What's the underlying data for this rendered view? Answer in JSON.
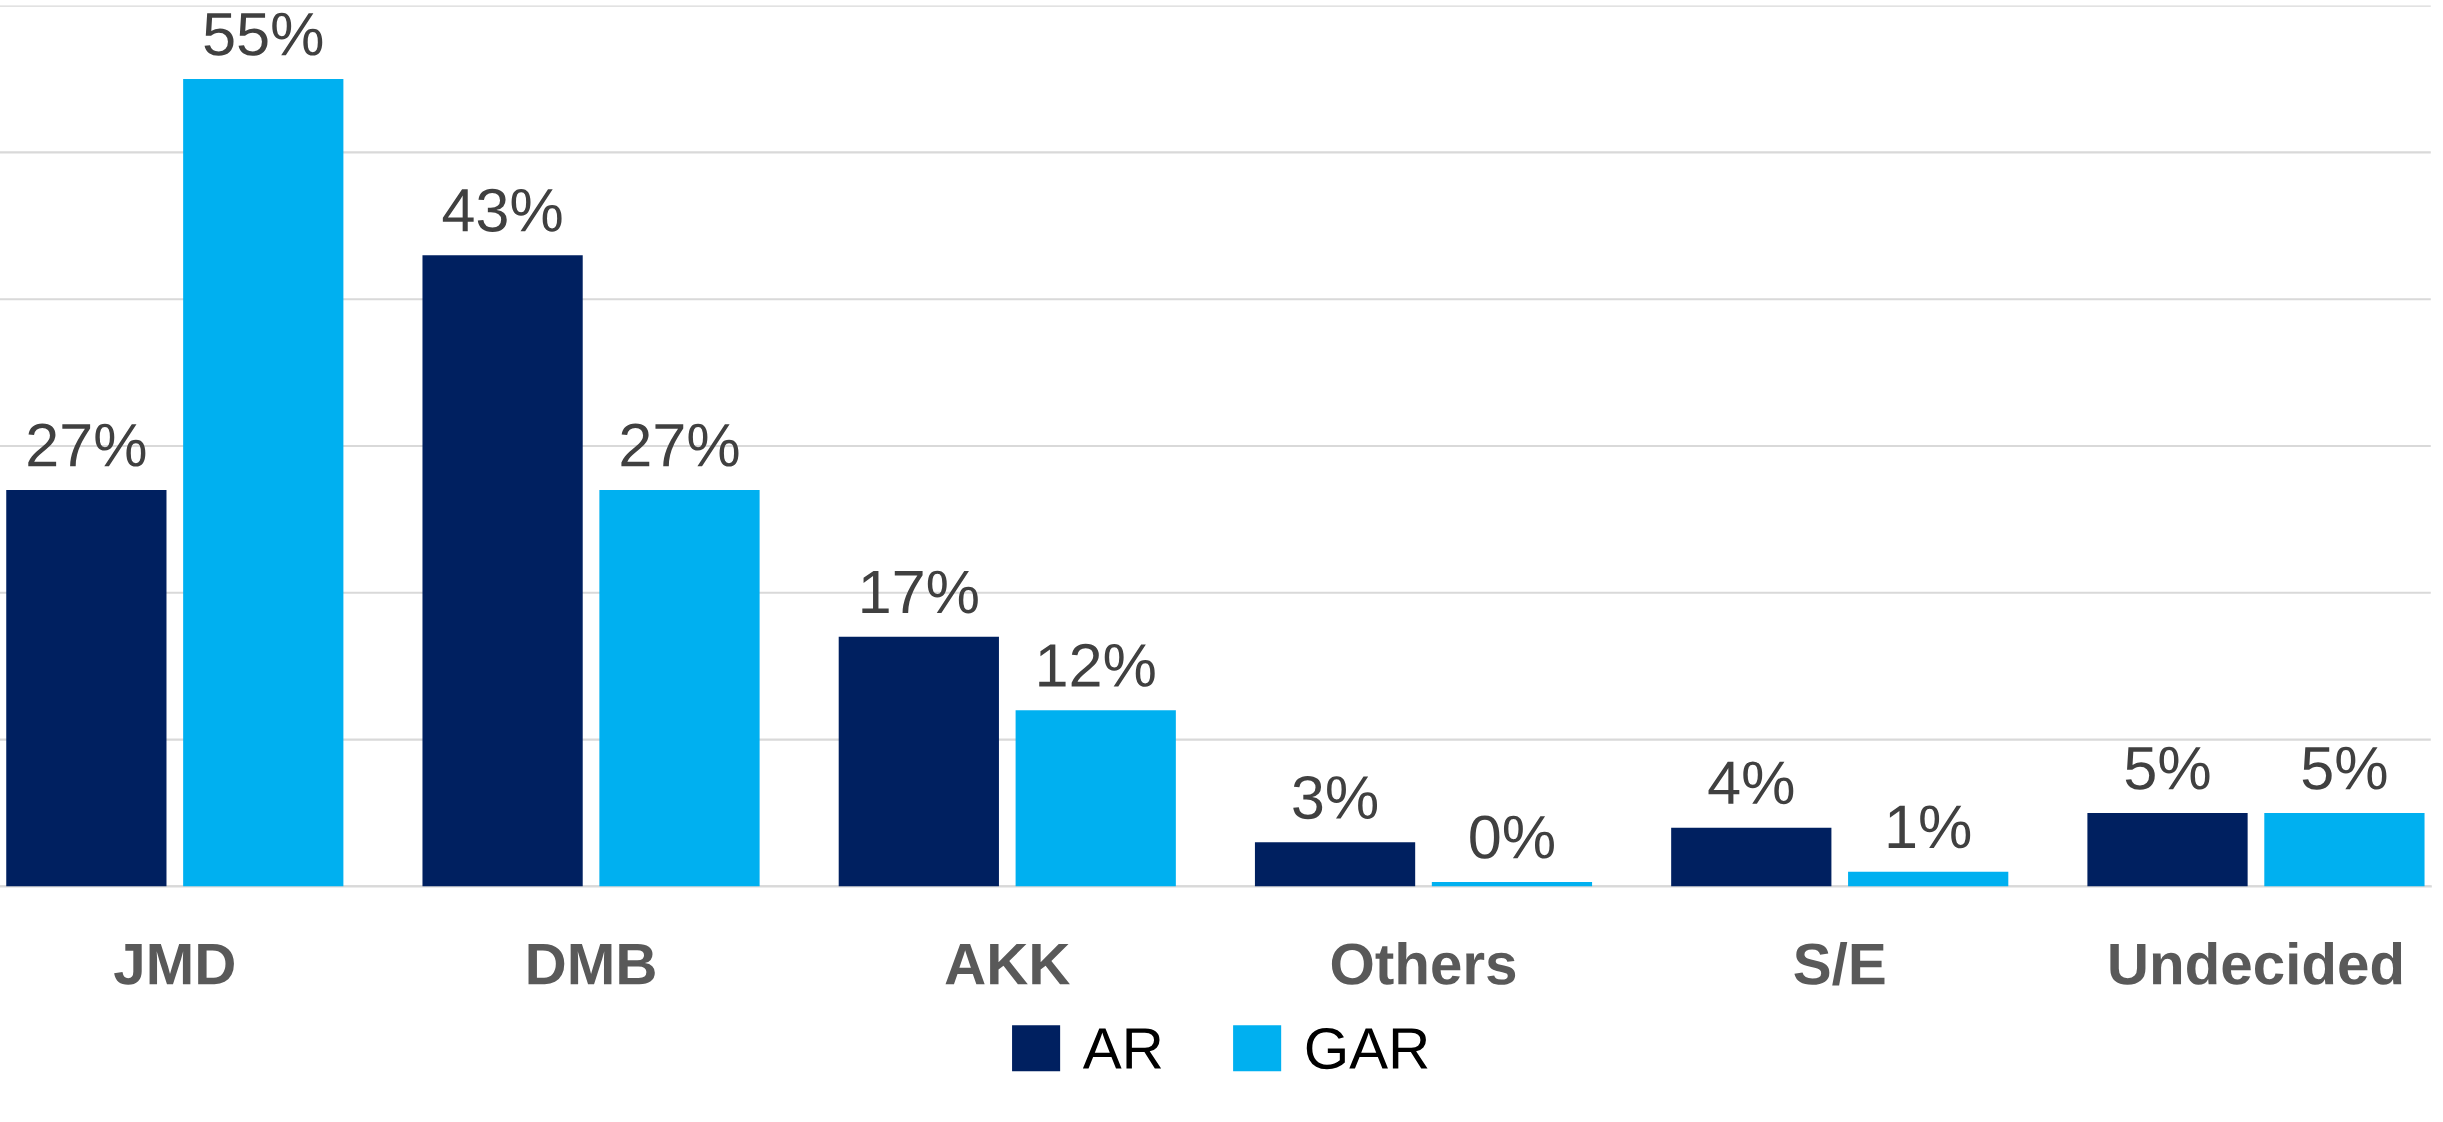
{
  "chart_data": {
    "type": "bar",
    "categories": [
      "JMD",
      "DMB",
      "AKK",
      "Others",
      "S/E",
      "Undecided"
    ],
    "series": [
      {
        "name": "AR",
        "color": "#002060",
        "values": [
          27,
          43,
          17,
          3,
          4,
          5
        ],
        "value_labels": [
          "27%",
          "43%",
          "17%",
          "3%",
          "4%",
          "5%"
        ]
      },
      {
        "name": "GAR",
        "color": "#00b0f0",
        "values": [
          55,
          27,
          12,
          0.3,
          1,
          5
        ],
        "value_labels": [
          "55%",
          "27%",
          "12%",
          "0%",
          "1%",
          "5%"
        ]
      }
    ],
    "ylim": [
      0,
      60
    ],
    "yticks": [
      {
        "value": 0,
        "label": null
      },
      {
        "value": 10,
        "label": null
      },
      {
        "value": 20,
        "label": null
      },
      {
        "value": 30,
        "label": null
      },
      {
        "value": 40,
        "label": null
      },
      {
        "value": 50,
        "label": null
      },
      {
        "value": 60,
        "label": null
      }
    ],
    "tick_labels": "x",
    "grid": "y",
    "legend": "bottom"
  }
}
